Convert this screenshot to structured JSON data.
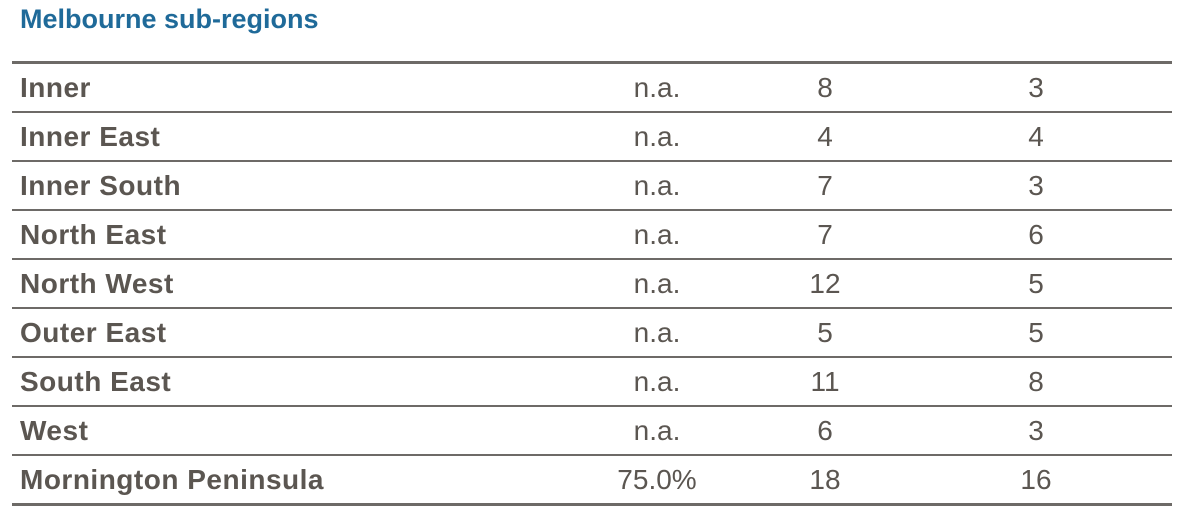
{
  "title": "Melbourne sub-regions",
  "table": {
    "rows": [
      [
        "Inner",
        "n.a.",
        8,
        3
      ],
      [
        "Inner East",
        "n.a.",
        4,
        4
      ],
      [
        "Inner South",
        "n.a.",
        7,
        3
      ],
      [
        "North East",
        "n.a.",
        7,
        6
      ],
      [
        "North West",
        "n.a.",
        12,
        5
      ],
      [
        "Outer East",
        "n.a.",
        5,
        5
      ],
      [
        "South East",
        "n.a.",
        11,
        8
      ],
      [
        "West",
        "n.a.",
        6,
        3
      ],
      [
        "Mornington Peninsula",
        "75.0%",
        18,
        16
      ]
    ]
  }
}
